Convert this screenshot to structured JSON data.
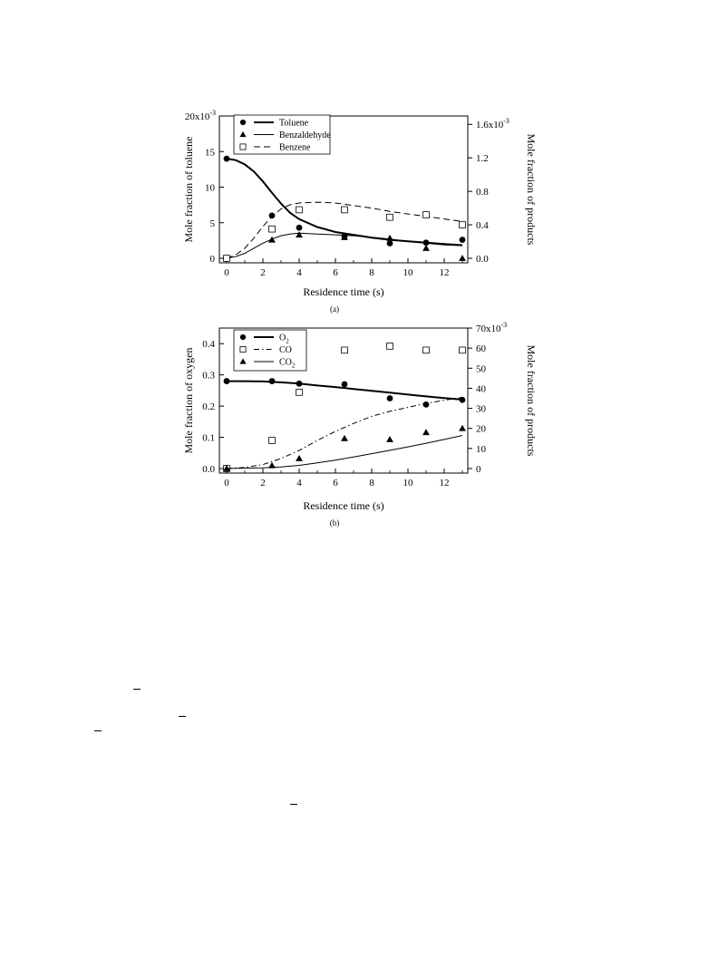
{
  "chart_data": [
    {
      "type": "line",
      "caption": "(a)",
      "xlabel": "Residence time (s)",
      "ylabel": "Mole fraction of toluene",
      "y2label": "Mole fraction of products",
      "xlim": [
        0,
        13
      ],
      "ylim": [
        0,
        20
      ],
      "y2lim": [
        0,
        1.7
      ],
      "xticks": [
        "0",
        "2",
        "4",
        "6",
        "8",
        "10",
        "12"
      ],
      "yticks": [
        "0",
        "5",
        "10",
        "15",
        "20x10"
      ],
      "y_exp": "-3",
      "y2ticks": [
        "0.0",
        "0.4",
        "0.8",
        "1.2",
        "1.6x10"
      ],
      "y2_exp": "-3",
      "legend_position": "top-left",
      "series": [
        {
          "name": "Toluene",
          "marker": "circle",
          "axis": "left",
          "line": "thick",
          "points": [
            [
              0,
              14.0
            ],
            [
              2.5,
              6.0
            ],
            [
              4,
              4.3
            ],
            [
              6.5,
              3.1
            ],
            [
              9,
              2.1
            ],
            [
              11,
              2.2
            ],
            [
              13,
              2.6
            ]
          ],
          "model": [
            [
              0,
              14.0
            ],
            [
              0.5,
              13.8
            ],
            [
              1,
              13.2
            ],
            [
              1.5,
              12.2
            ],
            [
              2,
              10.8
            ],
            [
              2.5,
              9.2
            ],
            [
              3,
              7.7
            ],
            [
              3.5,
              6.4
            ],
            [
              4,
              5.5
            ],
            [
              5,
              4.4
            ],
            [
              6,
              3.7
            ],
            [
              7,
              3.3
            ],
            [
              8,
              2.9
            ],
            [
              9,
              2.6
            ],
            [
              10,
              2.4
            ],
            [
              11,
              2.2
            ],
            [
              12,
              2.0
            ],
            [
              13,
              1.85
            ]
          ]
        },
        {
          "name": "Benzaldehyde",
          "marker": "triangle",
          "axis": "right",
          "line": "solid",
          "points": [
            [
              0,
              0.0
            ],
            [
              2.5,
              0.22
            ],
            [
              4,
              0.28
            ],
            [
              6.5,
              0.25
            ],
            [
              9,
              0.24
            ],
            [
              11,
              0.12
            ],
            [
              13,
              0.0
            ]
          ],
          "model": [
            [
              0,
              0.0
            ],
            [
              0.5,
              0.02
            ],
            [
              1,
              0.06
            ],
            [
              1.5,
              0.12
            ],
            [
              2,
              0.18
            ],
            [
              2.5,
              0.23
            ],
            [
              3,
              0.27
            ],
            [
              3.5,
              0.29
            ],
            [
              4,
              0.3
            ],
            [
              5,
              0.29
            ],
            [
              6,
              0.28
            ],
            [
              7,
              0.27
            ],
            [
              8,
              0.25
            ],
            [
              9,
              0.23
            ],
            [
              10,
              0.2
            ],
            [
              11,
              0.18
            ],
            [
              12,
              0.16
            ],
            [
              13,
              0.15
            ]
          ]
        },
        {
          "name": "Benzene",
          "marker": "square",
          "axis": "right",
          "line": "dashed",
          "points": [
            [
              0,
              0.0
            ],
            [
              2.5,
              0.35
            ],
            [
              4,
              0.58
            ],
            [
              6.5,
              0.58
            ],
            [
              9,
              0.49
            ],
            [
              11,
              0.52
            ],
            [
              13,
              0.4
            ]
          ],
          "model": [
            [
              0,
              0.0
            ],
            [
              0.5,
              0.04
            ],
            [
              1,
              0.12
            ],
            [
              1.5,
              0.24
            ],
            [
              2,
              0.38
            ],
            [
              2.5,
              0.5
            ],
            [
              3,
              0.59
            ],
            [
              3.5,
              0.64
            ],
            [
              4,
              0.66
            ],
            [
              5,
              0.67
            ],
            [
              6,
              0.66
            ],
            [
              7,
              0.63
            ],
            [
              8,
              0.6
            ],
            [
              9,
              0.56
            ],
            [
              10,
              0.53
            ],
            [
              11,
              0.5
            ],
            [
              12,
              0.47
            ],
            [
              13,
              0.44
            ]
          ]
        }
      ]
    },
    {
      "type": "line",
      "caption": "(b)",
      "xlabel": "Residence time (s)",
      "ylabel": "Mole fraction of oxygen",
      "y2label": "Mole fraction of products",
      "xlim": [
        0,
        13
      ],
      "ylim": [
        0,
        0.45
      ],
      "y2lim": [
        0,
        70
      ],
      "xticks": [
        "0",
        "2",
        "4",
        "6",
        "8",
        "10",
        "12"
      ],
      "yticks": [
        "0.0",
        "0.1",
        "0.2",
        "0.3",
        "0.4"
      ],
      "y_exp": "",
      "y2ticks": [
        "0",
        "10",
        "20",
        "30",
        "40",
        "50",
        "60",
        "70x10"
      ],
      "y2_exp": "-3",
      "legend_position": "top-left",
      "series": [
        {
          "name": "O",
          "sub": "2",
          "marker": "circle",
          "axis": "left",
          "line": "thick",
          "points": [
            [
              0,
              0.28
            ],
            [
              2.5,
              0.28
            ],
            [
              4,
              0.272
            ],
            [
              6.5,
              0.27
            ],
            [
              9,
              0.225
            ],
            [
              11,
              0.205
            ],
            [
              13,
              0.22
            ]
          ],
          "model": [
            [
              0,
              0.28
            ],
            [
              1,
              0.28
            ],
            [
              2,
              0.279
            ],
            [
              3,
              0.276
            ],
            [
              4,
              0.272
            ],
            [
              5,
              0.266
            ],
            [
              6,
              0.261
            ],
            [
              7,
              0.255
            ],
            [
              8,
              0.249
            ],
            [
              9,
              0.243
            ],
            [
              10,
              0.237
            ],
            [
              11,
              0.231
            ],
            [
              12,
              0.226
            ],
            [
              13,
              0.221
            ]
          ]
        },
        {
          "name": "CO",
          "sub": "",
          "marker": "square",
          "axis": "right",
          "line": "dashdot",
          "points": [
            [
              0,
              0.0
            ],
            [
              2.5,
              14.0
            ],
            [
              4,
              38.0
            ],
            [
              6.5,
              59.0
            ],
            [
              9,
              61.0
            ],
            [
              11,
              59.0
            ],
            [
              13,
              59.0
            ]
          ],
          "model": [
            [
              0,
              0.0
            ],
            [
              1,
              0.5
            ],
            [
              2,
              2.0
            ],
            [
              3,
              5.0
            ],
            [
              4,
              9.0
            ],
            [
              5,
              14.0
            ],
            [
              6,
              18.5
            ],
            [
              7,
              22.5
            ],
            [
              8,
              26.0
            ],
            [
              9,
              28.5
            ],
            [
              10,
              30.5
            ],
            [
              11,
              32.5
            ],
            [
              12,
              34.0
            ],
            [
              13,
              35.5
            ]
          ]
        },
        {
          "name": "CO",
          "sub": "2",
          "marker": "triangle",
          "axis": "right",
          "line": "solid",
          "points": [
            [
              0,
              0.0
            ],
            [
              2.5,
              1.5
            ],
            [
              4,
              5.0
            ],
            [
              6.5,
              15.0
            ],
            [
              9,
              14.5
            ],
            [
              11,
              18.0
            ],
            [
              13,
              20.0
            ]
          ],
          "model": [
            [
              0,
              0.0
            ],
            [
              2,
              0.3
            ],
            [
              3,
              0.8
            ],
            [
              4,
              1.6
            ],
            [
              5,
              2.8
            ],
            [
              6,
              4.2
            ],
            [
              7,
              5.8
            ],
            [
              8,
              7.4
            ],
            [
              9,
              9.1
            ],
            [
              10,
              10.8
            ],
            [
              11,
              12.6
            ],
            [
              12,
              14.5
            ],
            [
              13,
              16.5
            ]
          ]
        }
      ]
    }
  ]
}
